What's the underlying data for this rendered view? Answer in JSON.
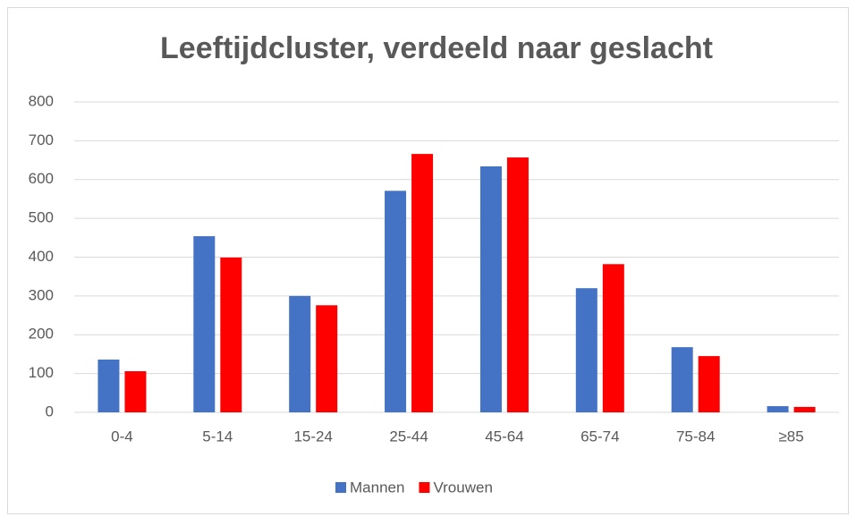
{
  "chart_data": {
    "type": "bar",
    "title": "Leeftijdcluster, verdeeld naar geslacht",
    "categories": [
      "0-4",
      "5-14",
      "15-24",
      "25-44",
      "45-64",
      "65-74",
      "75-84",
      "≥85"
    ],
    "series": [
      {
        "name": "Mannen",
        "color": "#4472c4",
        "values": [
          136,
          454,
          300,
          571,
          634,
          320,
          168,
          16
        ]
      },
      {
        "name": "Vrouwen",
        "color": "#ff0000",
        "values": [
          106,
          399,
          276,
          666,
          657,
          382,
          145,
          14
        ]
      }
    ],
    "ylim": [
      0,
      800
    ],
    "yticks": [
      0,
      100,
      200,
      300,
      400,
      500,
      600,
      700,
      800
    ],
    "grid": true,
    "legend": "bottom"
  }
}
